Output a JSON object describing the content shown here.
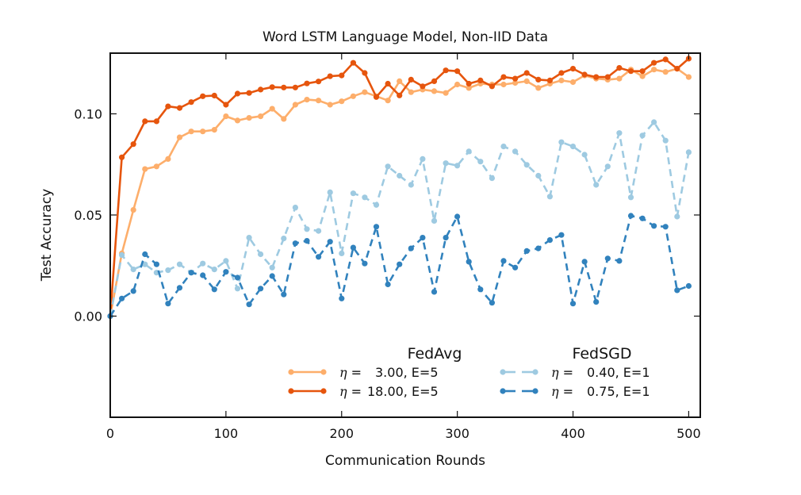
{
  "chart_data": {
    "type": "line",
    "title": "Word LSTM Language Model, Non-IID Data",
    "xlabel": "Communication Rounds",
    "ylabel": "Test Accuracy",
    "xlim": [
      0,
      510
    ],
    "ylim": [
      -0.05,
      0.13
    ],
    "xticks": [
      0,
      100,
      200,
      300,
      400,
      500
    ],
    "xtick_labels": [
      "0",
      "100",
      "200",
      "300",
      "400",
      "500"
    ],
    "yticks": [
      0.0,
      0.05,
      0.1
    ],
    "ytick_labels": [
      "0.00",
      "0.05",
      "0.10"
    ],
    "grid": false,
    "legend_position": "lower right",
    "legend_groups": [
      {
        "title": "FedAvg",
        "entries": [
          0,
          1
        ]
      },
      {
        "title": "FedSGD",
        "entries": [
          2,
          3
        ]
      }
    ],
    "x": [
      0,
      10,
      20,
      30,
      40,
      50,
      60,
      70,
      80,
      90,
      100,
      110,
      120,
      130,
      140,
      150,
      160,
      170,
      180,
      190,
      200,
      210,
      220,
      230,
      240,
      250,
      260,
      270,
      280,
      290,
      300,
      310,
      320,
      330,
      340,
      350,
      360,
      370,
      380,
      390,
      400,
      410,
      420,
      430,
      440,
      450,
      460,
      470,
      480,
      490,
      500
    ],
    "series": [
      {
        "name": "η = 3.00, E=5",
        "eta_label": "η =",
        "param_label": "3.00, E=5",
        "group": "FedAvg",
        "color": "#fdae6b",
        "linestyle": "solid",
        "values": [
          0.0,
          0.031,
          0.0525,
          0.0727,
          0.074,
          0.0777,
          0.0884,
          0.0913,
          0.0913,
          0.0921,
          0.0988,
          0.0967,
          0.098,
          0.0988,
          0.1025,
          0.0975,
          0.1045,
          0.107,
          0.1066,
          0.1045,
          0.1062,
          0.1087,
          0.1107,
          0.1087,
          0.1066,
          0.1161,
          0.1107,
          0.112,
          0.1112,
          0.1103,
          0.1145,
          0.1128,
          0.1149,
          0.1145,
          0.1145,
          0.1153,
          0.1161,
          0.1128,
          0.1149,
          0.1165,
          0.1157,
          0.119,
          0.1174,
          0.1169,
          0.1174,
          0.1219,
          0.1186,
          0.1219,
          0.1207,
          0.1223,
          0.1182
        ]
      },
      {
        "name": "η = 18.00, E=5",
        "eta_label": "η =",
        "param_label": "18.00, E=5",
        "group": "FedAvg",
        "color": "#e6550d",
        "linestyle": "solid",
        "values": [
          0.0,
          0.0785,
          0.085,
          0.0963,
          0.0963,
          0.1037,
          0.1029,
          0.1058,
          0.1087,
          0.109,
          0.1045,
          0.11,
          0.1103,
          0.112,
          0.1132,
          0.113,
          0.113,
          0.115,
          0.116,
          0.1186,
          0.119,
          0.1252,
          0.1202,
          0.1083,
          0.1149,
          0.1091,
          0.1169,
          0.1136,
          0.1161,
          0.1215,
          0.1211,
          0.1149,
          0.1165,
          0.1136,
          0.1182,
          0.1174,
          0.1202,
          0.1169,
          0.1165,
          0.1202,
          0.1223,
          0.1194,
          0.1182,
          0.1182,
          0.1227,
          0.1211,
          0.1211,
          0.1252,
          0.1269,
          0.1223,
          0.1273
        ]
      },
      {
        "name": "η = 0.40, E=1",
        "eta_label": "η =",
        "param_label": "0.40, E=1",
        "group": "FedSGD",
        "color": "#9ecae1",
        "linestyle": "dashed",
        "values": [
          0.0,
          0.0302,
          0.0231,
          0.0256,
          0.0215,
          0.0227,
          0.0256,
          0.0215,
          0.026,
          0.0231,
          0.0273,
          0.0136,
          0.0388,
          0.0306,
          0.024,
          0.0384,
          0.0537,
          0.043,
          0.0421,
          0.0612,
          0.031,
          0.0607,
          0.0587,
          0.055,
          0.074,
          0.0694,
          0.0649,
          0.0777,
          0.0471,
          0.0756,
          0.0744,
          0.0814,
          0.0764,
          0.0682,
          0.0839,
          0.0814,
          0.0748,
          0.0694,
          0.0591,
          0.086,
          0.0839,
          0.0798,
          0.0649,
          0.074,
          0.0905,
          0.0587,
          0.0893,
          0.0959,
          0.0868,
          0.0492,
          0.081
        ]
      },
      {
        "name": "η = 0.75, E=1",
        "eta_label": "η =",
        "param_label": "0.75, E=1",
        "group": "FedSGD",
        "color": "#3182bd",
        "linestyle": "dashed",
        "values": [
          0.0,
          0.0087,
          0.0124,
          0.0306,
          0.0256,
          0.0062,
          0.014,
          0.0215,
          0.0202,
          0.0132,
          0.0219,
          0.019,
          0.0058,
          0.0136,
          0.0198,
          0.0107,
          0.036,
          0.0372,
          0.0293,
          0.0368,
          0.0087,
          0.0339,
          0.026,
          0.0442,
          0.0157,
          0.0256,
          0.0335,
          0.0388,
          0.012,
          0.0388,
          0.0492,
          0.0269,
          0.0132,
          0.0066,
          0.0273,
          0.024,
          0.0322,
          0.0335,
          0.0376,
          0.0401,
          0.0062,
          0.0269,
          0.007,
          0.0285,
          0.0273,
          0.0496,
          0.0483,
          0.0446,
          0.0442,
          0.0128,
          0.0149
        ]
      }
    ]
  }
}
